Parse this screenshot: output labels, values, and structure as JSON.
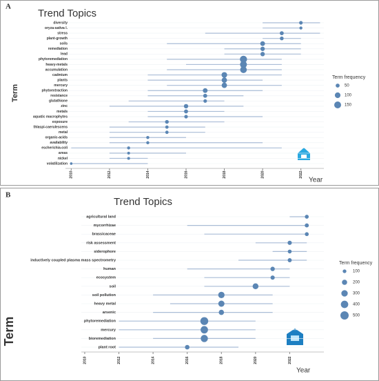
{
  "chart_data": [
    {
      "type": "dot",
      "panel": "A",
      "title": "Trend Topics",
      "x_label": "Year",
      "y_label": "Term",
      "categories": [
        "diversity",
        "oryza-sativa l.",
        "stress",
        "plant-growth",
        "soils",
        "remediation",
        "lead",
        "phytoremediation",
        "heavy-metals",
        "accumulation",
        "cadmium",
        "plants",
        "mercury",
        "phytoextraction",
        "resistance",
        "glutathione",
        "zinc",
        "metals",
        "aquatic macrophytes",
        "exposure",
        "thlaspi-caerulescens",
        "metal",
        "organic-acids",
        "availability",
        "escherichia-coli",
        "areas",
        "nickel",
        "volatilization"
      ],
      "q1": [
        2020,
        2020,
        2017,
        2020,
        2015,
        2018,
        2018,
        2015,
        2016,
        2015,
        2014,
        2014,
        2015,
        2014,
        2014,
        2013,
        2012,
        2014,
        2014,
        2013,
        2012,
        2012,
        2012,
        2012,
        2010,
        2012,
        2012,
        2010
      ],
      "values": [
        2022,
        2022,
        2021,
        2021,
        2020,
        2020,
        2020,
        2019,
        2019,
        2019,
        2018,
        2018,
        2018,
        2017,
        2017,
        2017,
        2016,
        2016,
        2016,
        2015,
        2015,
        2015,
        2014,
        2014,
        2013,
        2013,
        2013,
        2010
      ],
      "q3": [
        2023,
        2022,
        2023,
        2022,
        2022,
        2022,
        2022,
        2021,
        2021,
        2021,
        2021,
        2020,
        2021,
        2020,
        2019,
        2018,
        2019,
        2018,
        2020,
        2018,
        2017,
        2017,
        2016,
        2020,
        2021,
        2016,
        2014,
        2014
      ],
      "sizes": [
        40,
        30,
        50,
        45,
        70,
        60,
        60,
        160,
        150,
        140,
        100,
        90,
        90,
        70,
        50,
        40,
        60,
        50,
        40,
        45,
        35,
        35,
        30,
        30,
        30,
        25,
        25,
        20
      ],
      "color": "#5b86b4",
      "range_color": "#a9bcd6",
      "xlim": [
        2009.7,
        2023.2
      ],
      "xticks": [
        2010,
        2012,
        2014,
        2016,
        2018,
        2020,
        2022
      ],
      "size_legend": {
        "title": "Term frequency",
        "values": [
          50,
          100,
          150
        ]
      }
    },
    {
      "type": "dot",
      "panel": "B",
      "title": "Trend Topics",
      "x_label": "Year",
      "y_label": "Term",
      "categories": [
        "agricultural land",
        "mycorrhizae",
        "brassicaceae",
        "risk assessment",
        "siderophore",
        "inductively coupled plasma mass spectrometry",
        "human",
        "ecosystem",
        "soil",
        "soil pollution",
        "heavy metal",
        "arsenic",
        "phytoremediation",
        "mercury",
        "bioremediation",
        "plant root"
      ],
      "q1": [
        2022,
        2016,
        2017,
        2020,
        2021,
        2019,
        2016,
        2017,
        2017,
        2014,
        2015,
        2014,
        2012,
        2012,
        2014,
        2012
      ],
      "values": [
        2023,
        2023,
        2023,
        2022,
        2022,
        2022,
        2021,
        2021,
        2020,
        2018,
        2018,
        2018,
        2017,
        2017,
        2017,
        2016
      ],
      "q3": [
        2023,
        2023,
        2023,
        2023,
        2023,
        2023,
        2022,
        2022,
        2022,
        2021,
        2021,
        2021,
        2020,
        2020,
        2020,
        2019
      ],
      "sizes": [
        110,
        120,
        110,
        130,
        110,
        120,
        140,
        130,
        250,
        300,
        280,
        200,
        450,
        400,
        380,
        150
      ],
      "color": "#5b86b4",
      "range_color": "#a9bcd6",
      "xlim": [
        2009.8,
        2024
      ],
      "xticks": [
        2010,
        2012,
        2014,
        2016,
        2018,
        2020,
        2022
      ],
      "size_legend": {
        "title": "Term frequency",
        "values": [
          100,
          200,
          300,
          400,
          500
        ]
      }
    }
  ]
}
